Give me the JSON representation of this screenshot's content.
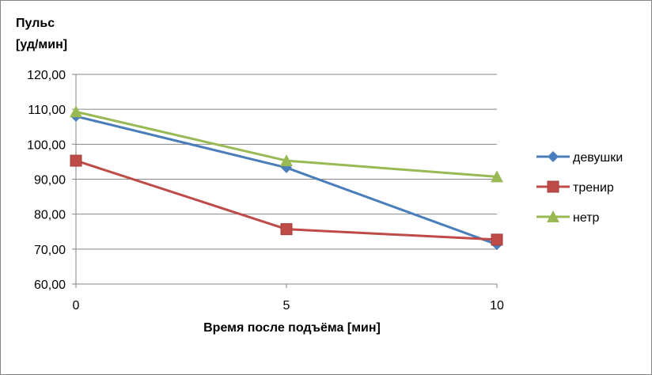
{
  "chart_data": {
    "type": "line",
    "ylabel_lines": [
      "Пульс",
      "[уд/мин]"
    ],
    "xlabel": "Время после подъёма [мин]",
    "x": [
      0,
      5,
      10
    ],
    "x_tick_labels": [
      "0",
      "5",
      "10"
    ],
    "xlim": [
      0,
      10
    ],
    "ylim": [
      60,
      120
    ],
    "y_ticks": [
      60,
      70,
      80,
      90,
      100,
      110,
      120
    ],
    "y_tick_labels": [
      "60,00",
      "70,00",
      "80,00",
      "90,00",
      "100,00",
      "110,00",
      "120,00"
    ],
    "grid": true,
    "legend_position": "right",
    "series": [
      {
        "name": "девушки",
        "values": [
          108,
          93.3,
          71.3
        ],
        "color": "#4a7ebb",
        "marker": "diamond"
      },
      {
        "name": "тренир",
        "values": [
          95.3,
          75.7,
          72.7
        ],
        "color": "#be4b48",
        "marker": "square"
      },
      {
        "name": "нетр",
        "values": [
          109.3,
          95.3,
          90.7
        ],
        "color": "#98b954",
        "marker": "triangle"
      }
    ]
  }
}
